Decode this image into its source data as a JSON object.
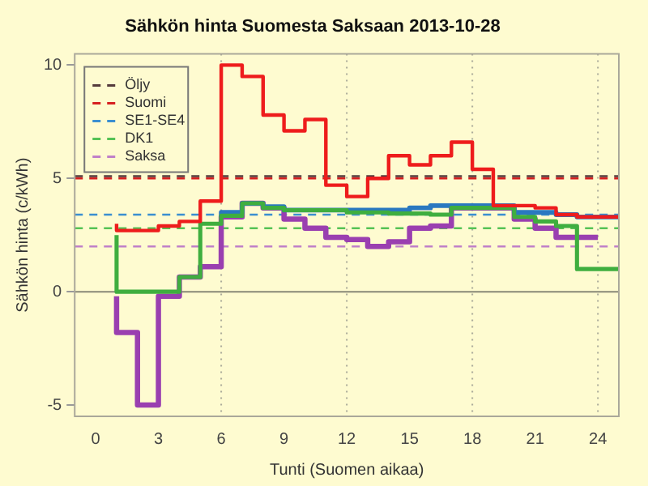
{
  "chart_data": {
    "type": "step",
    "title": "Sähkön hinta Suomesta Saksaan 2013-10-28",
    "xlabel": "Tunti (Suomen aikaa)",
    "ylabel": "Sähkön hinta (c/kWh)",
    "xlim": [
      -1,
      25
    ],
    "xticks": [
      0,
      3,
      6,
      9,
      12,
      15,
      18,
      21,
      24
    ],
    "ylim": [
      -5.5,
      10.5
    ],
    "yticks": [
      -5,
      0,
      5,
      10
    ],
    "legend": "top left",
    "series": [
      {
        "name": "Öljy",
        "type": "line",
        "line_style": "dashed",
        "color": "#553b3b",
        "x": [
          -1,
          25
        ],
        "values": [
          5.1,
          5.1
        ]
      },
      {
        "name": "Suomi",
        "type": "line",
        "line_style": "dashed",
        "color": "#d62020",
        "x": [
          -1,
          25
        ],
        "values": [
          5.0,
          5.0
        ]
      },
      {
        "name": "SE1-SE4",
        "type": "line",
        "line_style": "dashed",
        "color": "#3b8fd0",
        "x": [
          -1,
          25
        ],
        "values": [
          3.4,
          3.4
        ]
      },
      {
        "name": "DK1",
        "type": "line",
        "line_style": "dashed",
        "color": "#55c255",
        "x": [
          -1,
          25
        ],
        "values": [
          2.8,
          2.8
        ]
      },
      {
        "name": "Saksa",
        "type": "line",
        "line_style": "dashed",
        "color": "#c080c8",
        "x": [
          -1,
          25
        ],
        "values": [
          2.0,
          2.0
        ]
      },
      {
        "color": "#ee1c1c",
        "x": [
          1,
          2,
          3,
          4,
          5,
          6,
          7,
          8,
          9,
          10,
          11,
          12,
          13,
          14,
          15,
          16,
          17,
          18,
          19,
          20,
          21,
          22,
          23,
          24,
          25
        ],
        "values": [
          3.0,
          2.7,
          2.7,
          2.9,
          3.1,
          4.0,
          10.0,
          9.5,
          7.8,
          7.1,
          7.6,
          4.7,
          4.2,
          5.0,
          6.0,
          5.6,
          6.0,
          6.6,
          5.4,
          3.8,
          3.8,
          3.7,
          3.4,
          3.3,
          3.3
        ]
      },
      {
        "color": "#3fae3f",
        "x": [
          1,
          2,
          3,
          4,
          5,
          6,
          7,
          8,
          9,
          10,
          11,
          12,
          13,
          14,
          15,
          16,
          17,
          18,
          19,
          20,
          21,
          22,
          23,
          24,
          25
        ],
        "values": [
          2.5,
          0.0,
          0.0,
          0.0,
          0.65,
          3.0,
          3.35,
          3.9,
          3.7,
          3.6,
          3.6,
          3.6,
          3.5,
          3.5,
          3.45,
          3.45,
          3.4,
          3.7,
          3.7,
          3.7,
          3.3,
          3.1,
          2.9,
          1.0,
          1.0
        ]
      },
      {
        "color": "#2a78c0",
        "x": [
          6,
          7,
          8,
          9,
          10,
          11,
          12,
          13,
          14,
          15,
          16,
          17,
          18,
          19,
          20,
          21,
          22,
          23,
          24,
          25
        ],
        "values": [
          3.3,
          3.5,
          3.9,
          3.75,
          3.6,
          3.6,
          3.6,
          3.6,
          3.6,
          3.6,
          3.7,
          3.8,
          3.8,
          3.8,
          3.8,
          3.5,
          3.5,
          3.4,
          3.3,
          3.3
        ]
      },
      {
        "color": "#9a3fb0",
        "x": [
          1,
          2,
          3,
          4,
          5,
          6,
          7,
          8,
          9,
          10,
          11,
          12,
          13,
          14,
          15,
          16,
          17,
          18,
          19,
          20,
          21,
          22,
          23,
          24
        ],
        "values": [
          -0.2,
          -1.8,
          -5.0,
          -0.2,
          0.65,
          1.1,
          3.3,
          3.9,
          3.7,
          3.2,
          2.8,
          2.4,
          2.3,
          2.0,
          2.2,
          2.8,
          2.9,
          3.7,
          3.7,
          3.7,
          3.2,
          2.8,
          2.4,
          2.4
        ]
      }
    ],
    "ref_lines": [
      {
        "axis": "y",
        "value": 0,
        "color": "#888877",
        "line_style": "solid"
      },
      {
        "axis": "x",
        "value": 6,
        "color": "#aaaa99",
        "line_style": "dotted"
      },
      {
        "axis": "x",
        "value": 12,
        "color": "#aaaa99",
        "line_style": "dotted"
      },
      {
        "axis": "x",
        "value": 18,
        "color": "#aaaa99",
        "line_style": "dotted"
      },
      {
        "axis": "x",
        "value": 24,
        "color": "#aaaa99",
        "line_style": "dotted"
      }
    ]
  }
}
